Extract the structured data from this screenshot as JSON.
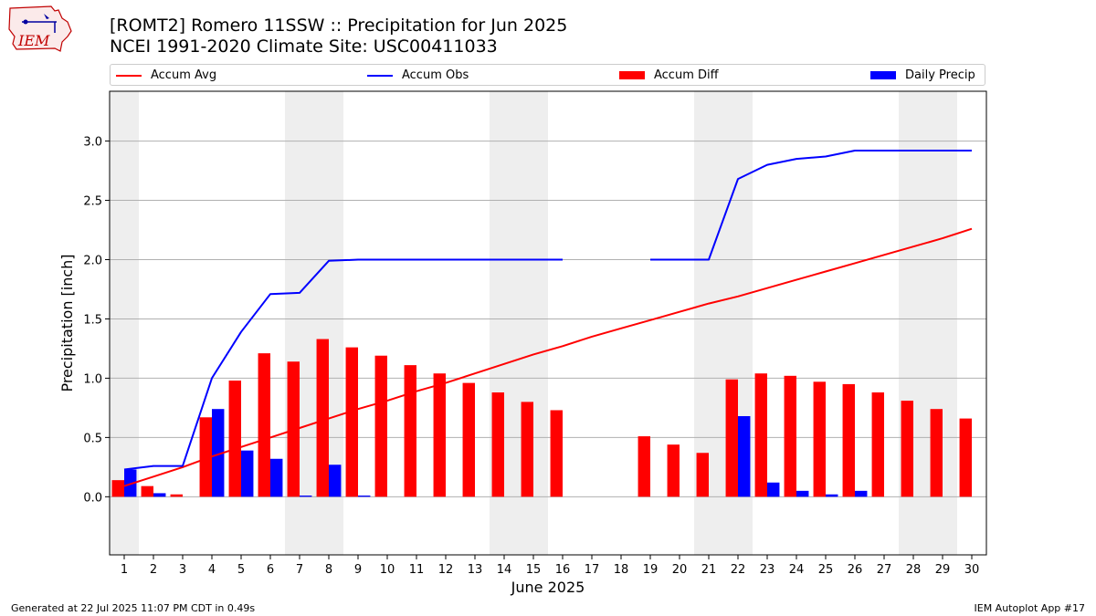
{
  "header": {
    "title_line1": "[ROMT2] Romero 11SSW :: Precipitation for Jun 2025",
    "title_line2": "NCEI 1991-2020 Climate Site: USC00411033"
  },
  "logo": {
    "text": "IEM"
  },
  "legend": {
    "accum_avg": "Accum Avg",
    "accum_obs": "Accum Obs",
    "accum_diff": "Accum Diff",
    "daily_precip": "Daily Precip"
  },
  "colors": {
    "avg": "#ff0000",
    "obs": "#0000ff",
    "diff": "#ff0000",
    "daily": "#0000ff",
    "weekend": "#eeeeee",
    "grid": "#b0b0b0"
  },
  "footer": {
    "generated": "Generated at 22 Jul 2025 11:07 PM CDT in 0.49s",
    "app": "IEM Autoplot App #17"
  },
  "chart_data": {
    "type": "bar",
    "xlabel": "June 2025",
    "ylabel": "Precipitation [inch]",
    "xlim": [
      0.5,
      30.5
    ],
    "ylim": [
      -0.49,
      3.42
    ],
    "y_ticks": [
      0.0,
      0.5,
      1.0,
      1.5,
      2.0,
      2.5,
      3.0
    ],
    "y_tick_labels": [
      "0.0",
      "0.5",
      "1.0",
      "1.5",
      "2.0",
      "2.5",
      "3.0"
    ],
    "x_ticks": [
      1,
      2,
      3,
      4,
      5,
      6,
      7,
      8,
      9,
      10,
      11,
      12,
      13,
      14,
      15,
      16,
      17,
      18,
      19,
      20,
      21,
      22,
      23,
      24,
      25,
      26,
      27,
      28,
      29,
      30
    ],
    "weekend_days": [
      1,
      7,
      8,
      14,
      15,
      21,
      22,
      28,
      29
    ],
    "grid": "horizontal",
    "legend_position": "top",
    "series": [
      {
        "name": "Accum Avg",
        "kind": "line",
        "values": [
          0.09,
          0.17,
          0.25,
          0.34,
          0.42,
          0.5,
          0.58,
          0.66,
          0.74,
          0.81,
          0.89,
          0.96,
          1.04,
          1.12,
          1.2,
          1.27,
          1.35,
          1.42,
          1.49,
          1.56,
          1.63,
          1.69,
          1.76,
          1.83,
          1.9,
          1.97,
          2.04,
          2.11,
          2.18,
          2.26
        ]
      },
      {
        "name": "Accum Obs",
        "kind": "line",
        "values": [
          0.23,
          0.26,
          0.26,
          1.0,
          1.39,
          1.71,
          1.72,
          1.99,
          2.0,
          2.0,
          2.0,
          2.0,
          2.0,
          2.0,
          2.0,
          2.0,
          null,
          null,
          2.0,
          2.0,
          2.0,
          2.68,
          2.8,
          2.85,
          2.87,
          2.92,
          2.92,
          2.92,
          2.92,
          2.92
        ]
      },
      {
        "name": "Accum Diff",
        "kind": "bar",
        "values": [
          0.14,
          0.09,
          0.02,
          0.67,
          0.98,
          1.21,
          1.14,
          1.33,
          1.26,
          1.19,
          1.11,
          1.04,
          0.96,
          0.88,
          0.8,
          0.73,
          null,
          null,
          0.51,
          0.44,
          0.37,
          0.99,
          1.04,
          1.02,
          0.97,
          0.95,
          0.88,
          0.81,
          0.74,
          0.66
        ]
      },
      {
        "name": "Daily Precip",
        "kind": "bar",
        "values": [
          0.23,
          0.03,
          0.0,
          0.74,
          0.39,
          0.32,
          0.01,
          0.27,
          0.01,
          0.0,
          0.0,
          0.0,
          0.0,
          0.0,
          0.0,
          0.0,
          null,
          null,
          0.0,
          0.0,
          0.0,
          0.68,
          0.12,
          0.05,
          0.02,
          0.05,
          0.0,
          0.0,
          0.0,
          0.0
        ]
      }
    ]
  }
}
